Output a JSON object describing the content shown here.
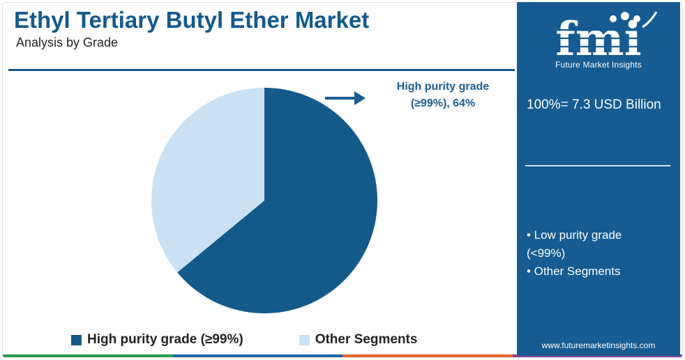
{
  "header": {
    "title": "Ethyl Tertiary Butyl Ether Market",
    "subtitle": "Analysis by Grade"
  },
  "chart_data": {
    "type": "pie",
    "title": "Ethyl Tertiary Butyl Ether Market",
    "subtitle": "Analysis by Grade",
    "slices": [
      {
        "label": "High purity grade (≥99%)",
        "value": 64,
        "color": "#135a8b"
      },
      {
        "label": "Other Segments",
        "value": 36,
        "color": "#c9e1f3"
      }
    ],
    "callout": {
      "line1": "High purity grade",
      "line2": "(≥99%), 64%"
    },
    "legend": {
      "position": "bottom",
      "items": [
        "High purity grade (≥99%)",
        "Other Segments"
      ]
    }
  },
  "side_panel": {
    "brand": "fmi",
    "tagline": "Future Market Insights",
    "total": "100%= 7.3 USD Billion",
    "segments": [
      "• Low purity grade",
      "(<99%)",
      "• Other Segments"
    ],
    "website": "www.futuremarketinsights.com"
  },
  "colors": {
    "accent": "#125a8c",
    "panel": "#165b91",
    "pie_primary": "#135a8b",
    "pie_secondary": "#c9e1f3"
  }
}
